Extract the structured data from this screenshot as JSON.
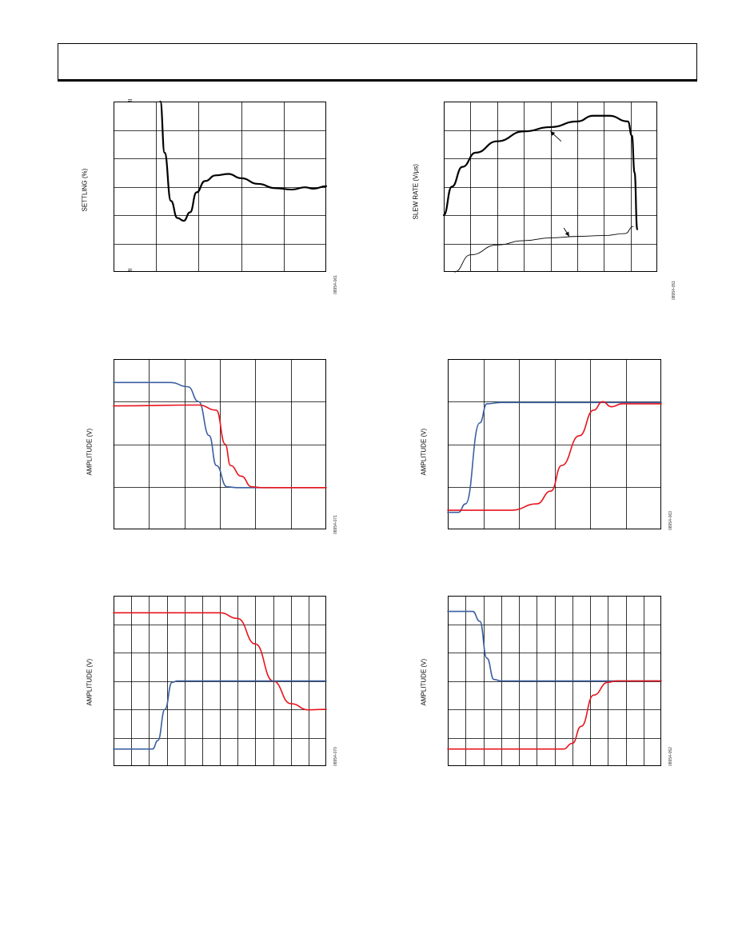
{
  "page": {
    "header_title": ""
  },
  "chart_data": [
    {
      "id": "settling",
      "type": "line",
      "ylabel": "SETTLING (%)",
      "figure_code": "08954-061",
      "axis_break_symbol": "≈",
      "grid": {
        "xdiv": 5,
        "ydiv": 6
      },
      "xlim": [
        0,
        5
      ],
      "ylim": [
        -3,
        3
      ],
      "series": [
        {
          "color": "#000000",
          "width": 2.2,
          "points": [
            [
              1.1,
              3.0
            ],
            [
              1.2,
              1.2
            ],
            [
              1.35,
              -0.5
            ],
            [
              1.5,
              -1.1
            ],
            [
              1.65,
              -1.2
            ],
            [
              1.8,
              -0.9
            ],
            [
              1.95,
              -0.2
            ],
            [
              2.15,
              0.2
            ],
            [
              2.4,
              0.4
            ],
            [
              2.7,
              0.45
            ],
            [
              3.0,
              0.3
            ],
            [
              3.4,
              0.1
            ],
            [
              3.8,
              -0.05
            ],
            [
              4.2,
              -0.1
            ],
            [
              4.5,
              -0.02
            ],
            [
              4.7,
              -0.07
            ],
            [
              5.0,
              0.02
            ]
          ]
        }
      ]
    },
    {
      "id": "slew",
      "type": "line",
      "ylabel": "SLEW RATE (V/µs)",
      "figure_code": "08954-051",
      "grid": {
        "xdiv": 8,
        "ydiv": 6
      },
      "xlim": [
        0,
        8
      ],
      "ylim": [
        0,
        6
      ],
      "series": [
        {
          "color": "#000000",
          "width": 2.2,
          "points": [
            [
              0,
              2.0
            ],
            [
              0.3,
              3.0
            ],
            [
              0.7,
              3.7
            ],
            [
              1.2,
              4.2
            ],
            [
              2.0,
              4.6
            ],
            [
              3.0,
              4.95
            ],
            [
              4.0,
              5.1
            ],
            [
              5.0,
              5.3
            ],
            [
              5.6,
              5.5
            ],
            [
              6.2,
              5.5
            ],
            [
              6.9,
              5.3
            ],
            [
              7.05,
              4.8
            ],
            [
              7.15,
              3.5
            ],
            [
              7.25,
              1.5
            ]
          ]
        },
        {
          "color": "#000000",
          "width": 0.9,
          "points": [
            [
              0.4,
              0
            ],
            [
              1.0,
              0.6
            ],
            [
              2.0,
              0.95
            ],
            [
              3.0,
              1.1
            ],
            [
              4.0,
              1.2
            ],
            [
              5.0,
              1.25
            ],
            [
              6.0,
              1.28
            ],
            [
              6.8,
              1.35
            ],
            [
              7.1,
              1.6
            ]
          ]
        }
      ],
      "annotations": [
        {
          "arrow_from": [
            4.4,
            4.6
          ],
          "arrow_to": [
            4.0,
            4.95
          ]
        },
        {
          "arrow_from": [
            4.5,
            1.55
          ],
          "arrow_to": [
            4.7,
            1.25
          ]
        }
      ]
    },
    {
      "id": "amp-mid-left",
      "type": "line",
      "ylabel": "AMPLITUDE (V)",
      "figure_code": "08954-071",
      "grid": {
        "xdiv": 6,
        "ydiv": 4
      },
      "xlim": [
        0,
        6
      ],
      "ylim": [
        0,
        4
      ],
      "series": [
        {
          "color": "#3a5fa0",
          "width": 1.6,
          "points": [
            [
              0,
              3.45
            ],
            [
              1.6,
              3.45
            ],
            [
              2.1,
              3.35
            ],
            [
              2.4,
              3.0
            ],
            [
              2.7,
              2.2
            ],
            [
              2.9,
              1.5
            ],
            [
              3.2,
              1.0
            ],
            [
              3.5,
              0.98
            ],
            [
              6.0,
              0.98
            ]
          ]
        },
        {
          "color": "#e8141c",
          "width": 1.6,
          "points": [
            [
              0,
              2.9
            ],
            [
              2.4,
              2.92
            ],
            [
              2.9,
              2.8
            ],
            [
              3.15,
              2.0
            ],
            [
              3.3,
              1.5
            ],
            [
              3.6,
              1.25
            ],
            [
              3.9,
              1.0
            ],
            [
              4.2,
              0.98
            ],
            [
              6.0,
              0.98
            ]
          ]
        }
      ]
    },
    {
      "id": "amp-mid-right",
      "type": "line",
      "ylabel": "AMPLITUDE (V)",
      "figure_code": "08954-063",
      "grid": {
        "xdiv": 6,
        "ydiv": 4
      },
      "xlim": [
        0,
        6
      ],
      "ylim": [
        0,
        4
      ],
      "series": [
        {
          "color": "#3a5fa0",
          "width": 1.6,
          "points": [
            [
              0,
              0.4
            ],
            [
              0.3,
              0.4
            ],
            [
              0.5,
              0.6
            ],
            [
              0.9,
              2.5
            ],
            [
              1.1,
              2.95
            ],
            [
              1.5,
              2.98
            ],
            [
              6.0,
              2.98
            ]
          ]
        },
        {
          "color": "#e8141c",
          "width": 1.6,
          "points": [
            [
              0,
              0.45
            ],
            [
              1.8,
              0.45
            ],
            [
              2.5,
              0.6
            ],
            [
              2.9,
              0.9
            ],
            [
              3.2,
              1.5
            ],
            [
              3.7,
              2.2
            ],
            [
              4.1,
              2.8
            ],
            [
              4.35,
              3.0
            ],
            [
              4.6,
              2.88
            ],
            [
              4.9,
              2.95
            ],
            [
              6.0,
              2.95
            ]
          ]
        }
      ]
    },
    {
      "id": "amp-bot-left",
      "type": "line",
      "ylabel": "AMPLITUDE (V)",
      "figure_code": "08954-070",
      "grid": {
        "xdiv": 12,
        "ydiv": 6
      },
      "xlim": [
        0,
        12
      ],
      "ylim": [
        0,
        6
      ],
      "series": [
        {
          "color": "#e8141c",
          "width": 1.6,
          "points": [
            [
              0,
              5.4
            ],
            [
              3.5,
              5.4
            ],
            [
              6.0,
              5.4
            ],
            [
              7.0,
              5.2
            ],
            [
              8.0,
              4.3
            ],
            [
              9.0,
              3.0
            ],
            [
              10.0,
              2.2
            ],
            [
              11.0,
              1.98
            ],
            [
              12.0,
              2.0
            ]
          ]
        },
        {
          "color": "#3a5fa0",
          "width": 1.6,
          "points": [
            [
              0,
              0.6
            ],
            [
              2.2,
              0.6
            ],
            [
              2.5,
              0.9
            ],
            [
              2.9,
              2.0
            ],
            [
              3.3,
              2.95
            ],
            [
              3.6,
              3.0
            ],
            [
              12.0,
              3.0
            ]
          ]
        }
      ]
    },
    {
      "id": "amp-bot-right",
      "type": "line",
      "ylabel": "AMPLITUDE (V)",
      "figure_code": "08954-052",
      "grid": {
        "xdiv": 12,
        "ydiv": 6
      },
      "xlim": [
        0,
        12
      ],
      "ylim": [
        0,
        6
      ],
      "series": [
        {
          "color": "#3a5fa0",
          "width": 1.6,
          "points": [
            [
              0,
              5.45
            ],
            [
              1.4,
              5.45
            ],
            [
              1.8,
              5.1
            ],
            [
              2.2,
              3.8
            ],
            [
              2.6,
              3.05
            ],
            [
              3.0,
              3.0
            ],
            [
              12.0,
              3.0
            ]
          ]
        },
        {
          "color": "#e8141c",
          "width": 1.6,
          "points": [
            [
              0,
              0.6
            ],
            [
              6.5,
              0.6
            ],
            [
              7.0,
              0.8
            ],
            [
              7.5,
              1.4
            ],
            [
              8.2,
              2.5
            ],
            [
              9.0,
              2.95
            ],
            [
              9.5,
              3.0
            ],
            [
              12.0,
              3.0
            ]
          ]
        }
      ]
    }
  ]
}
